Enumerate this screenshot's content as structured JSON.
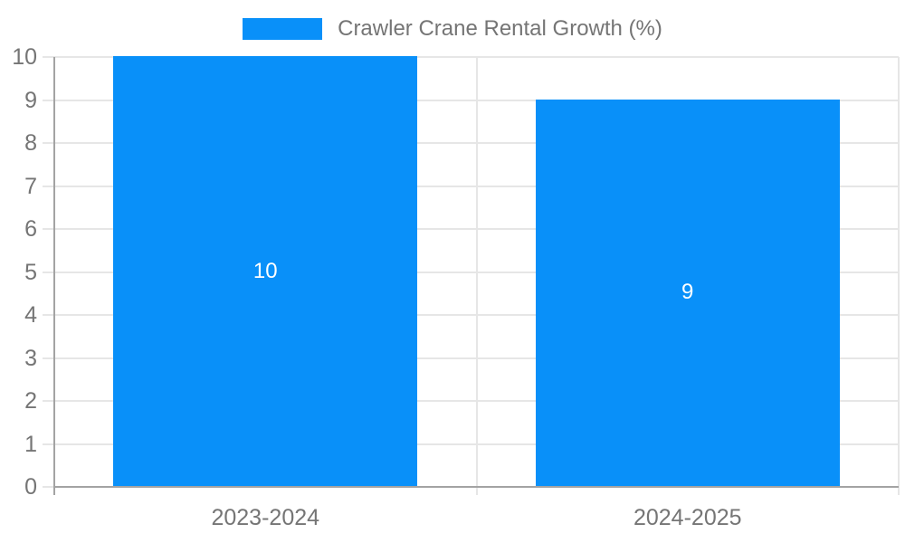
{
  "legend": {
    "label": "Crawler Crane Rental Growth (%)"
  },
  "colors": {
    "bar": "#0990f9",
    "axis_line": "#a3a3a3",
    "gridline": "#e6e6e6",
    "tick_label": "#757575",
    "data_label": "#ffffff",
    "background": "#ffffff"
  },
  "chart_data": {
    "type": "bar",
    "categories": [
      "2023-2024",
      "2024-2025"
    ],
    "values": [
      10,
      9
    ],
    "data_labels": [
      "10",
      "9"
    ],
    "title": "Crawler Crane Rental Growth (%)",
    "xlabel": "",
    "ylabel": "",
    "ylim": [
      0,
      10
    ],
    "yticks": [
      0,
      1,
      2,
      3,
      4,
      5,
      6,
      7,
      8,
      9,
      10
    ],
    "grid": true,
    "legend_position": "top-center"
  }
}
